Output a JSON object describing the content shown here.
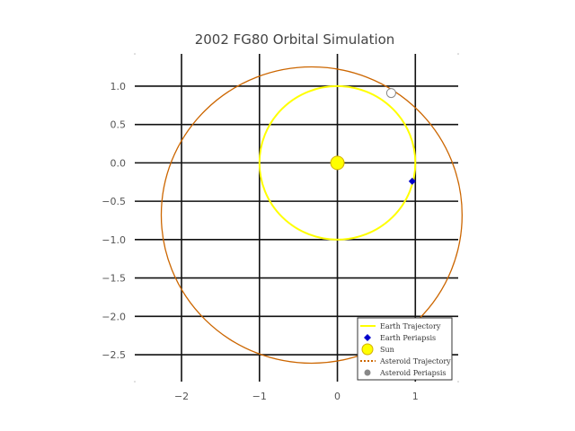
{
  "chart_data": {
    "type": "line",
    "title": "2002 FG80 Orbital Simulation",
    "xlabel": "",
    "ylabel": "",
    "xlim": [
      -2.6,
      1.55
    ],
    "ylim": [
      -2.85,
      1.42
    ],
    "x_ticks": [
      -2,
      -1,
      0,
      1
    ],
    "x_tick_labels": [
      "−2",
      "−1",
      "0",
      "1"
    ],
    "y_ticks": [
      1.0,
      0.5,
      0.0,
      -0.5,
      -1.0,
      -1.5,
      -2.0,
      -2.5
    ],
    "y_tick_labels": [
      "1.0",
      "0.5",
      "0.0",
      "−0.5",
      "−1.0",
      "−1.5",
      "−2.0",
      "−2.5"
    ],
    "grid": true,
    "legend_position": "bottom-right",
    "series": [
      {
        "name": "Earth Trajectory",
        "kind": "circle",
        "center": [
          0.0,
          0.0
        ],
        "radius": 1.0,
        "color": "#ffff00"
      },
      {
        "name": "Earth Periapsis",
        "kind": "point",
        "x": 0.96,
        "y": -0.24,
        "color": "#0000cc"
      },
      {
        "name": "Sun",
        "kind": "point",
        "x": 0.0,
        "y": 0.0,
        "color": "#ffff00"
      },
      {
        "name": "Asteroid Trajectory",
        "kind": "ellipse",
        "center": [
          -0.33,
          -0.68
        ],
        "rx": 1.93,
        "ry": 1.93,
        "color": "#cc6600"
      },
      {
        "name": "Asteroid Periapsis",
        "kind": "point",
        "x": 0.69,
        "y": 0.91,
        "color": "#ffffff"
      }
    ]
  }
}
